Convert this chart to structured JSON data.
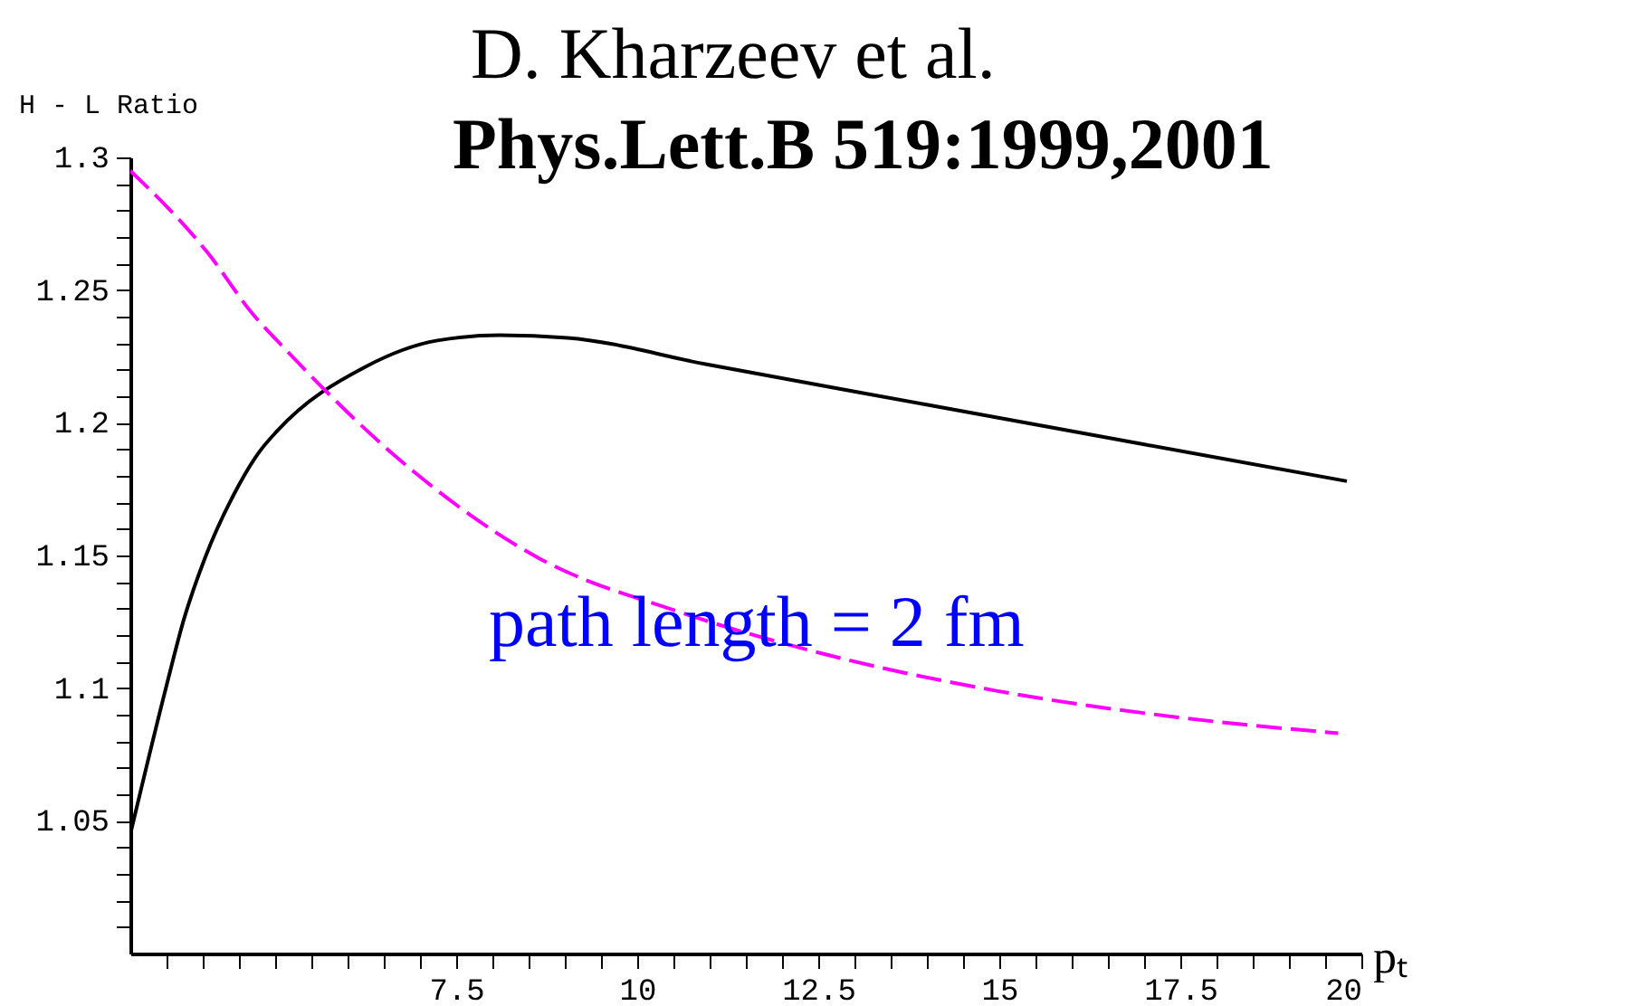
{
  "chart_data": {
    "type": "line",
    "xlabel": "pₜ",
    "ylabel": "H - L Ratio",
    "annotations": [
      "D. Kharzeev et al.",
      "Phys.Lett.B 519:1999,2001",
      "path length = 2 fm"
    ],
    "xlim": [
      3,
      20
    ],
    "ylim": [
      1.0,
      1.3
    ],
    "xticks": [
      {
        "value": 3.5,
        "label": null
      },
      {
        "value": 4,
        "label": null
      },
      {
        "value": 4.5,
        "label": null
      },
      {
        "value": 5,
        "label": null
      },
      {
        "value": 5.5,
        "label": null
      },
      {
        "value": 6,
        "label": null
      },
      {
        "value": 6.5,
        "label": null
      },
      {
        "value": 7,
        "label": null
      },
      {
        "value": 7.5,
        "label": "7.5"
      },
      {
        "value": 8,
        "label": null
      },
      {
        "value": 8.5,
        "label": null
      },
      {
        "value": 9,
        "label": null
      },
      {
        "value": 9.5,
        "label": null
      },
      10,
      {
        "value": 10.5,
        "label": null
      },
      {
        "value": 11,
        "label": null
      },
      {
        "value": 11.5,
        "label": null
      },
      {
        "value": 12,
        "label": null
      },
      {
        "value": 12.5,
        "label": "12.5"
      },
      {
        "value": 13,
        "label": null
      },
      {
        "value": 13.5,
        "label": null
      },
      {
        "value": 14,
        "label": null
      },
      {
        "value": 14.5,
        "label": null
      },
      15,
      {
        "value": 15.5,
        "label": null
      },
      {
        "value": 16,
        "label": null
      },
      {
        "value": 16.5,
        "label": null
      },
      {
        "value": 17,
        "label": null
      },
      {
        "value": 17.5,
        "label": "17.5"
      },
      {
        "value": 18,
        "label": null
      },
      {
        "value": 18.5,
        "label": null
      },
      {
        "value": 19,
        "label": null
      },
      {
        "value": 19.5,
        "label": null
      },
      20
    ],
    "yticks": [
      {
        "value": 1.01,
        "label": null
      },
      {
        "value": 1.02,
        "label": null
      },
      {
        "value": 1.03,
        "label": null
      },
      {
        "value": 1.04,
        "label": null
      },
      {
        "value": 1.05,
        "label": "1.05"
      },
      {
        "value": 1.06,
        "label": null
      },
      {
        "value": 1.07,
        "label": null
      },
      {
        "value": 1.08,
        "label": null
      },
      {
        "value": 1.09,
        "label": null
      },
      {
        "value": 1.1,
        "label": "1.1"
      },
      {
        "value": 1.11,
        "label": null
      },
      {
        "value": 1.12,
        "label": null
      },
      {
        "value": 1.13,
        "label": null
      },
      {
        "value": 1.14,
        "label": null
      },
      {
        "value": 1.15,
        "label": "1.15"
      },
      {
        "value": 1.16,
        "label": null
      },
      {
        "value": 1.17,
        "label": null
      },
      {
        "value": 1.18,
        "label": null
      },
      {
        "value": 1.19,
        "label": null
      },
      {
        "value": 1.2,
        "label": "1.2"
      },
      {
        "value": 1.21,
        "label": null
      },
      {
        "value": 1.22,
        "label": null
      },
      {
        "value": 1.23,
        "label": null
      },
      {
        "value": 1.24,
        "label": null
      },
      {
        "value": 1.25,
        "label": "1.25"
      },
      {
        "value": 1.26,
        "label": null
      },
      {
        "value": 1.27,
        "label": null
      },
      {
        "value": 1.28,
        "label": null
      },
      {
        "value": 1.29,
        "label": null
      },
      {
        "value": 1.3,
        "label": "1.3"
      }
    ],
    "grid": false,
    "marker": "none",
    "series": [
      {
        "color": "#000000",
        "line_style": "solid",
        "x": [
          3,
          3.5,
          3.74,
          4.03,
          4.43,
          4.78,
          5.03,
          6.24,
          7.24,
          8.1,
          9.04,
          10.96,
          13.96,
          16.97,
          19.8
        ],
        "values": [
          1.045,
          1.101,
          1.126,
          1.149,
          1.173,
          1.189,
          1.197,
          1.221,
          1.231,
          1.233,
          1.232,
          1.222,
          1.207,
          1.192,
          1.178
        ]
      },
      {
        "color": "#ff00ff",
        "line_style": "dashed",
        "x": [
          3,
          4.07,
          4.69,
          5.13,
          6.94,
          8.64,
          10.55,
          12.56,
          14.96,
          17.47,
          19.68
        ],
        "values": [
          1.295,
          1.264,
          1.241,
          1.228,
          1.181,
          1.149,
          1.129,
          1.113,
          1.099,
          1.089,
          1.083
        ]
      }
    ]
  }
}
